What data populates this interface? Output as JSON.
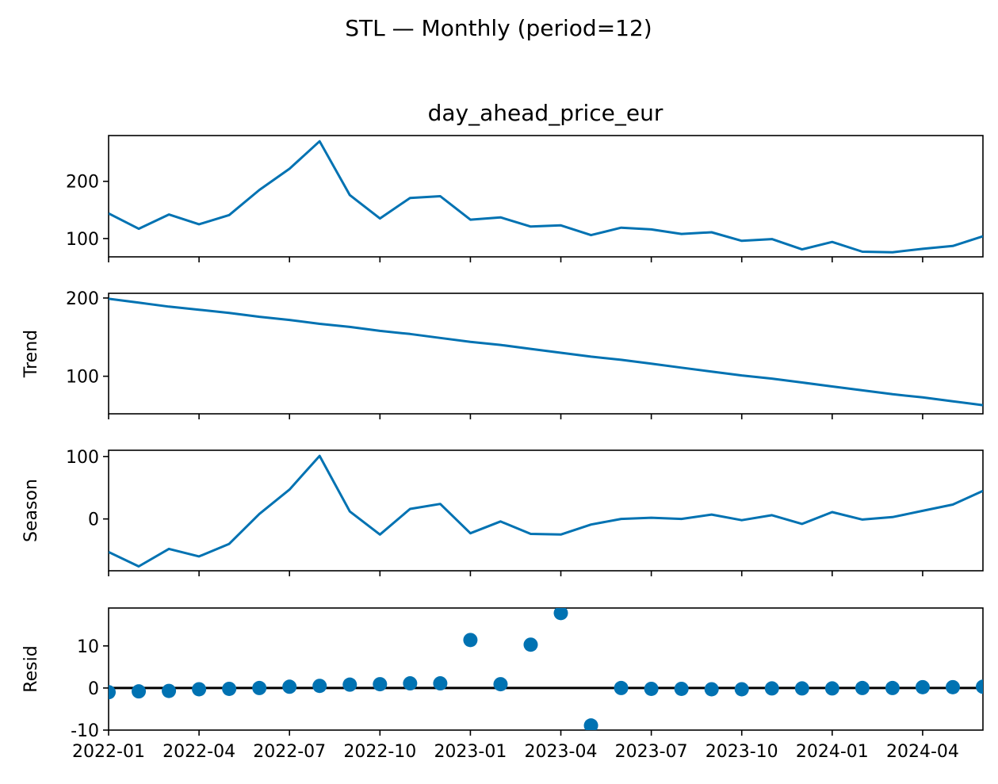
{
  "chart_data": {
    "type": "line",
    "title": "STL — Monthly (period=12)",
    "subtitle": "day_ahead_price_eur",
    "x": [
      "2022-01",
      "2022-02",
      "2022-03",
      "2022-04",
      "2022-05",
      "2022-06",
      "2022-07",
      "2022-08",
      "2022-09",
      "2022-10",
      "2022-11",
      "2022-12",
      "2023-01",
      "2023-02",
      "2023-03",
      "2023-04",
      "2023-05",
      "2023-06",
      "2023-07",
      "2023-08",
      "2023-09",
      "2023-10",
      "2023-11",
      "2023-12",
      "2024-01",
      "2024-02",
      "2024-03",
      "2024-04",
      "2024-05",
      "2024-06"
    ],
    "x_tick_labels": [
      "2022-01",
      "2022-04",
      "2022-07",
      "2022-10",
      "2023-01",
      "2023-04",
      "2023-07",
      "2023-10",
      "2024-01",
      "2024-04"
    ],
    "line_color": "#0072B2",
    "zero_line_color": "#000000",
    "grid": false,
    "panels": [
      {
        "name": "observed",
        "ylabel": "",
        "kind": "line",
        "ylim": [
          68,
          280
        ],
        "yticks": [
          100,
          200
        ],
        "values": [
          144,
          117,
          142,
          125,
          141,
          185,
          222,
          270,
          176,
          135,
          171,
          174,
          133,
          137,
          121,
          123,
          106,
          119,
          116,
          108,
          111,
          96,
          99,
          81,
          94,
          77,
          76,
          82,
          87,
          104
        ]
      },
      {
        "name": "trend",
        "ylabel": "Trend",
        "kind": "line",
        "ylim": [
          52,
          206
        ],
        "yticks": [
          100,
          200
        ],
        "values": [
          199,
          194,
          189,
          185,
          181,
          176,
          172,
          167,
          163,
          158,
          154,
          149,
          144,
          140,
          135,
          130,
          125,
          121,
          116,
          111,
          106,
          101,
          97,
          92,
          87,
          82,
          77,
          73,
          68,
          63
        ]
      },
      {
        "name": "season",
        "ylabel": "Season",
        "kind": "line",
        "ylim": [
          -83,
          110
        ],
        "yticks": [
          0,
          100
        ],
        "values": [
          -53,
          -76,
          -48,
          -60,
          -40,
          8,
          47,
          101,
          12,
          -25,
          16,
          24,
          -23,
          -4,
          -24,
          -25,
          -9,
          0,
          2,
          0,
          7,
          -2,
          6,
          -8,
          11,
          -1,
          3,
          13,
          23,
          45
        ]
      },
      {
        "name": "resid",
        "ylabel": "Resid",
        "kind": "scatter",
        "ylim": [
          -10,
          19
        ],
        "yticks": [
          -10,
          0,
          10
        ],
        "zero_line": true,
        "values": [
          -1,
          -0.8,
          -0.7,
          -0.3,
          -0.2,
          0,
          0.3,
          0.5,
          0.8,
          0.9,
          1.1,
          1.1,
          11.4,
          0.9,
          10.3,
          17.8,
          -8.9,
          0,
          -0.2,
          -0.2,
          -0.3,
          -0.3,
          -0.1,
          -0.1,
          -0.1,
          0,
          0,
          0.2,
          0.2,
          0.3
        ]
      }
    ]
  }
}
